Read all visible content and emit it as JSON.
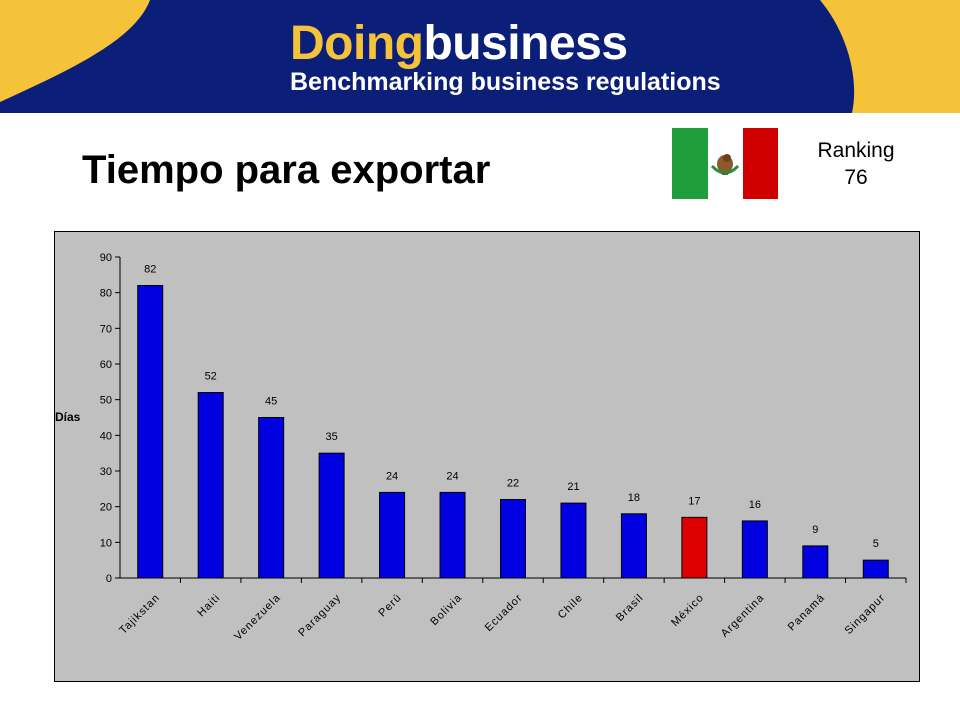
{
  "header": {
    "brand_doing": "Doing",
    "brand_business": "business",
    "tagline": "Benchmarking business regulations"
  },
  "title": "Tiempo para exportar",
  "ranking": {
    "label": "Ranking",
    "value": "76"
  },
  "colors": {
    "banner_yellow": "#f5c33a",
    "banner_navy": "#0b1f78",
    "bar_default": "#0000e0",
    "bar_highlight": "#dd0000",
    "plot_bg": "#c0c0c0"
  },
  "chart_data": {
    "type": "bar",
    "title": "",
    "ylabel": "Días",
    "xlabel": "",
    "ylim": [
      0,
      90
    ],
    "yticks": [
      0,
      10,
      20,
      30,
      40,
      50,
      60,
      70,
      80,
      90
    ],
    "grid": false,
    "legend": "none",
    "categories": [
      "Tajikstan",
      "Haiti",
      "Venezuela",
      "Paraguay",
      "Perú",
      "Bolivia",
      "Ecuador",
      "Chile",
      "Brasil",
      "México",
      "Argentina",
      "Panamá",
      "Singapur"
    ],
    "values": [
      82,
      52,
      45,
      35,
      24,
      24,
      22,
      21,
      18,
      17,
      16,
      9,
      5
    ],
    "highlight": "México"
  }
}
